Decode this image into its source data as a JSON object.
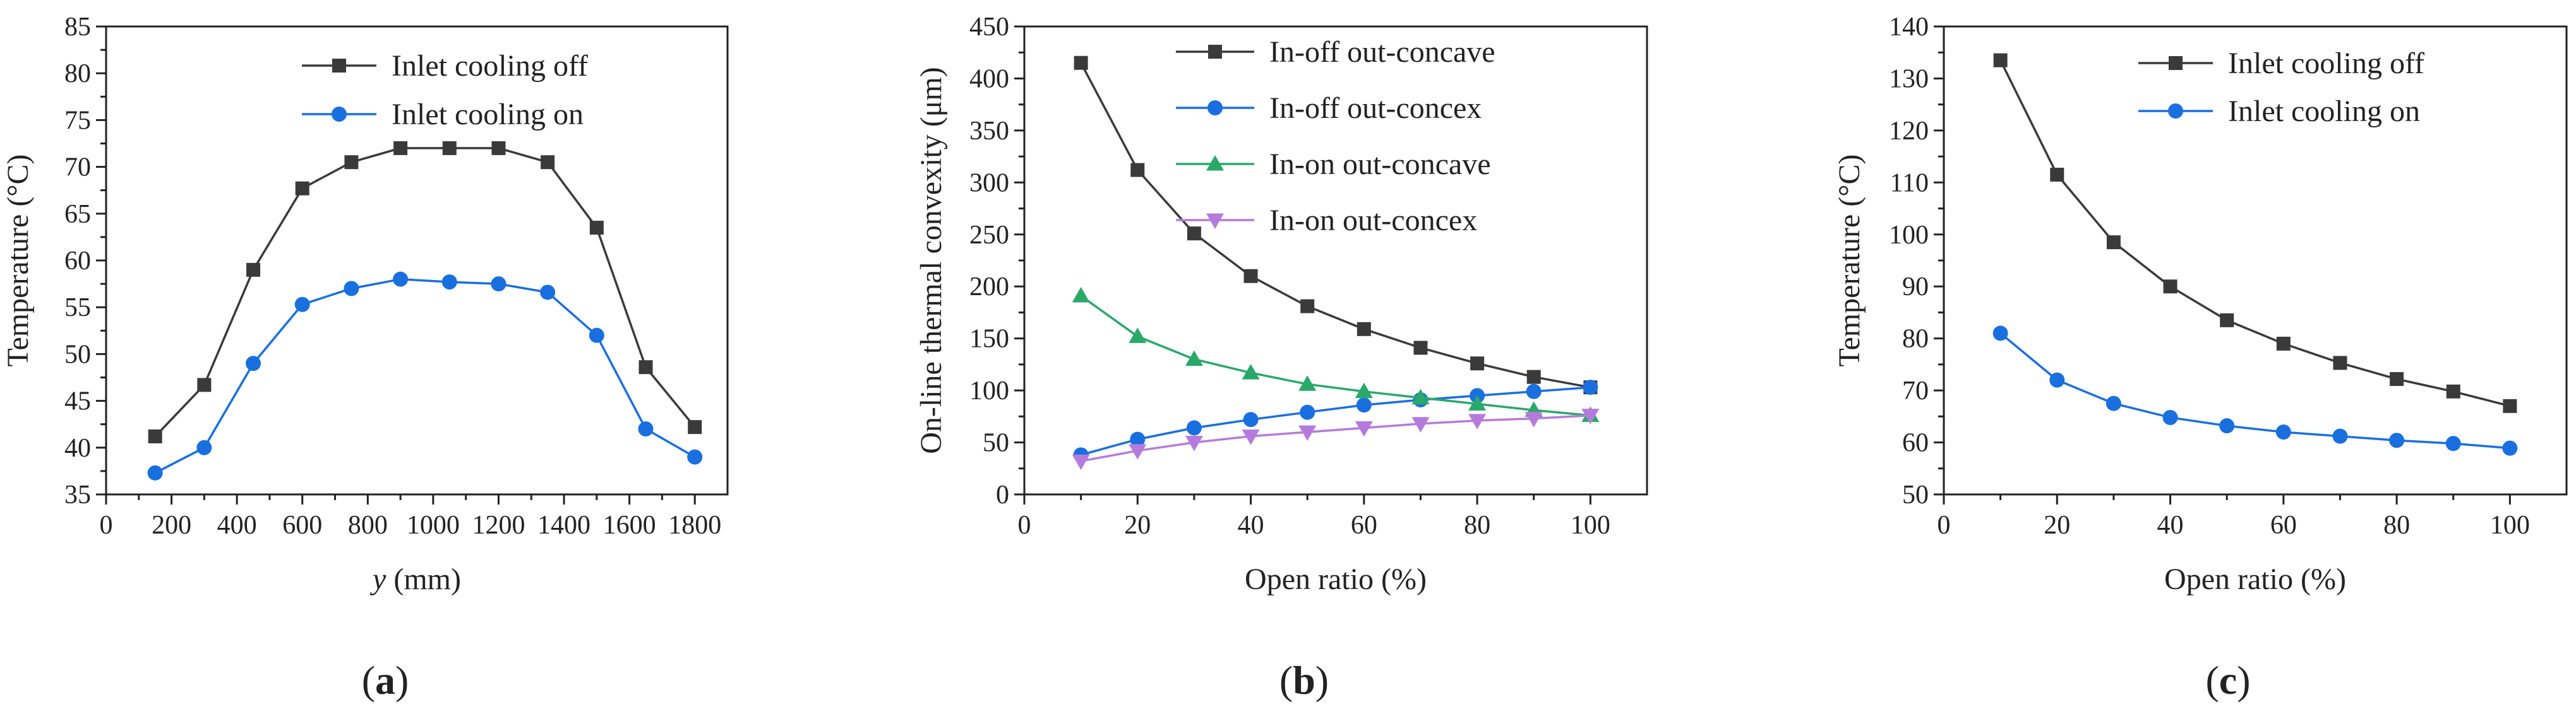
{
  "figure": {
    "panel_labels": [
      "(a)",
      "(b)",
      "(c)"
    ],
    "panel_letters": [
      "a",
      "b",
      "c"
    ]
  },
  "colors": {
    "black_series": "#3a3a3a",
    "blue_series": "#1a6fdf",
    "green_series": "#2aa86a",
    "purple_series": "#b57bdc"
  },
  "chart_data": [
    {
      "type": "line",
      "title": "",
      "xlabel": "y (mm)",
      "xlabel_var": "y",
      "xlabel_unit": " (mm)",
      "ylabel": "Temperature (°C)",
      "xlim": [
        0,
        1900
      ],
      "ylim": [
        35,
        85
      ],
      "xticks": [
        0,
        200,
        400,
        600,
        800,
        1000,
        1200,
        1400,
        1600,
        1800
      ],
      "yticks": [
        35,
        40,
        45,
        50,
        55,
        60,
        65,
        70,
        75,
        80,
        85
      ],
      "legend": "top-right",
      "series": [
        {
          "name": "Inlet cooling off",
          "marker": "square",
          "color": "#3a3a3a",
          "x": [
            150,
            300,
            450,
            600,
            750,
            900,
            1050,
            1200,
            1350,
            1500,
            1650,
            1800
          ],
          "y": [
            41.2,
            46.7,
            59.0,
            67.7,
            70.5,
            72.0,
            72.0,
            72.0,
            70.5,
            63.5,
            48.6,
            42.2
          ]
        },
        {
          "name": "Inlet cooling on",
          "marker": "circle",
          "color": "#1a6fdf",
          "x": [
            150,
            300,
            450,
            600,
            750,
            900,
            1050,
            1200,
            1350,
            1500,
            1650,
            1800
          ],
          "y": [
            37.3,
            40.0,
            49.0,
            55.3,
            57.0,
            58.0,
            57.7,
            57.5,
            56.6,
            52.0,
            42.0,
            39.0
          ]
        }
      ]
    },
    {
      "type": "line",
      "title": "",
      "xlabel": "Open ratio (%)",
      "ylabel": "On-line thermal convexity (μm)",
      "xlim": [
        0,
        110
      ],
      "ylim": [
        0,
        450
      ],
      "xticks": [
        0,
        20,
        40,
        60,
        80,
        100
      ],
      "yticks": [
        0,
        50,
        100,
        150,
        200,
        250,
        300,
        350,
        400,
        450
      ],
      "legend": "top-right",
      "series": [
        {
          "name": "In-off out-concave",
          "marker": "square",
          "color": "#3a3a3a",
          "x": [
            10,
            20,
            30,
            40,
            50,
            60,
            70,
            80,
            90,
            100
          ],
          "y": [
            415,
            312,
            251,
            210,
            181,
            159,
            141,
            126,
            113,
            103
          ]
        },
        {
          "name": "In-off out-concex",
          "marker": "circle",
          "color": "#1a6fdf",
          "x": [
            10,
            20,
            30,
            40,
            50,
            60,
            70,
            80,
            90,
            100
          ],
          "y": [
            38,
            53,
            64,
            72,
            79,
            86,
            91,
            95,
            99,
            103
          ]
        },
        {
          "name": "In-on out-concave",
          "marker": "triangle-up",
          "color": "#2aa86a",
          "x": [
            10,
            20,
            30,
            40,
            50,
            60,
            70,
            80,
            90,
            100
          ],
          "y": [
            191,
            152,
            130,
            117,
            106,
            99,
            93,
            87,
            81,
            76
          ]
        },
        {
          "name": "In-on out-concex",
          "marker": "triangle-down",
          "color": "#b57bdc",
          "x": [
            10,
            20,
            30,
            40,
            50,
            60,
            70,
            80,
            90,
            100
          ],
          "y": [
            32,
            42,
            50,
            56,
            60,
            64,
            68,
            71,
            73,
            76
          ]
        }
      ]
    },
    {
      "type": "line",
      "title": "",
      "xlabel": "Open ratio (%)",
      "ylabel": "Temperature (°C)",
      "xlim": [
        0,
        110
      ],
      "ylim": [
        50,
        140
      ],
      "xticks": [
        0,
        20,
        40,
        60,
        80,
        100
      ],
      "yticks": [
        50,
        60,
        70,
        80,
        90,
        100,
        110,
        120,
        130,
        140
      ],
      "legend": "top-right",
      "series": [
        {
          "name": "Inlet cooling off",
          "marker": "square",
          "color": "#3a3a3a",
          "x": [
            10,
            20,
            30,
            40,
            50,
            60,
            70,
            80,
            90,
            100
          ],
          "y": [
            133.5,
            111.5,
            98.5,
            90.0,
            83.5,
            79.0,
            75.3,
            72.2,
            69.8,
            67.0
          ]
        },
        {
          "name": "Inlet cooling on",
          "marker": "circle",
          "color": "#1a6fdf",
          "x": [
            10,
            20,
            30,
            40,
            50,
            60,
            70,
            80,
            90,
            100
          ],
          "y": [
            81.0,
            72.0,
            67.5,
            64.8,
            63.2,
            62.0,
            61.2,
            60.4,
            59.8,
            58.9
          ]
        }
      ]
    }
  ]
}
